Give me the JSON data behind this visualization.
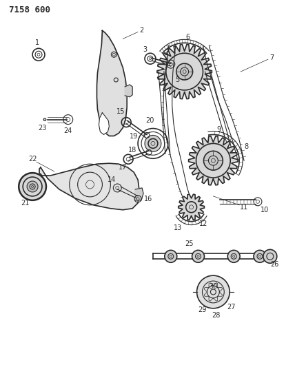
{
  "title": "7158 600",
  "bg_color": "#ffffff",
  "line_color": "#2a2a2a",
  "fig_width": 4.28,
  "fig_height": 5.33,
  "dpi": 100,
  "upper_cover": {
    "x": [
      155,
      158,
      160,
      165,
      175,
      182,
      188,
      192,
      193,
      192,
      188,
      182,
      175,
      168,
      160,
      155,
      152,
      150,
      148,
      148,
      150,
      153,
      155
    ],
    "y": [
      490,
      488,
      485,
      475,
      460,
      448,
      435,
      418,
      400,
      382,
      368,
      358,
      352,
      350,
      352,
      358,
      368,
      382,
      400,
      418,
      435,
      460,
      490
    ]
  },
  "lower_cover": {
    "x": [
      58,
      65,
      80,
      100,
      120,
      140,
      160,
      178,
      190,
      198,
      202,
      200,
      195,
      185,
      170,
      155,
      138,
      118,
      98,
      78,
      62,
      58
    ],
    "y": [
      278,
      265,
      250,
      238,
      230,
      225,
      225,
      228,
      233,
      242,
      258,
      275,
      285,
      292,
      295,
      292,
      288,
      282,
      275,
      270,
      272,
      278
    ]
  }
}
